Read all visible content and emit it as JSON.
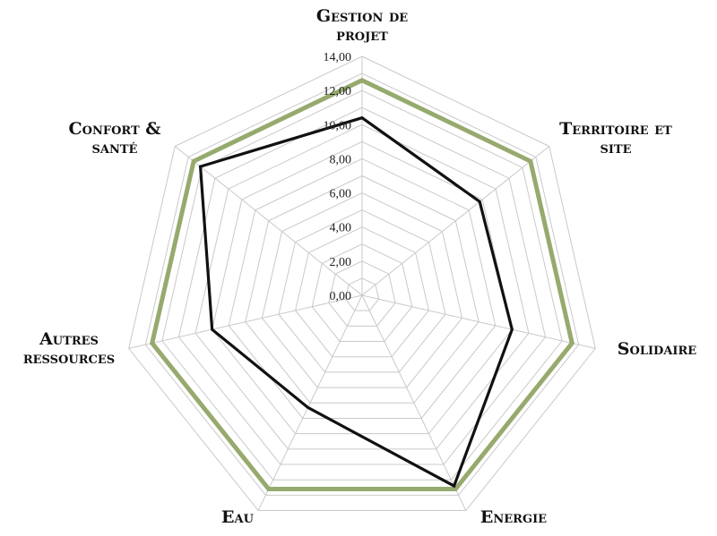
{
  "chart_data": {
    "type": "radar",
    "title": "",
    "categories": [
      [
        "Gestion de",
        "projet"
      ],
      [
        "Territoire et",
        "site"
      ],
      [
        "Solidaire"
      ],
      [
        "Energie"
      ],
      [
        "Eau"
      ],
      [
        "Autres",
        "ressources"
      ],
      [
        "Confort &",
        "santé"
      ]
    ],
    "rlim": [
      0,
      14
    ],
    "ticks": [
      "0,00",
      "2,00",
      "4,00",
      "6,00",
      "8,00",
      "10,00",
      "12,00",
      "14,00"
    ],
    "grid": true,
    "legend": "none",
    "series": [
      {
        "color": "#97aa6e",
        "values": [
          12.6,
          12.6,
          12.6,
          12.6,
          12.6,
          12.6,
          12.6
        ]
      },
      {
        "color": "#111111",
        "values": [
          10.4,
          8.8,
          9.0,
          12.4,
          7.3,
          9.0,
          12.1
        ]
      }
    ]
  }
}
